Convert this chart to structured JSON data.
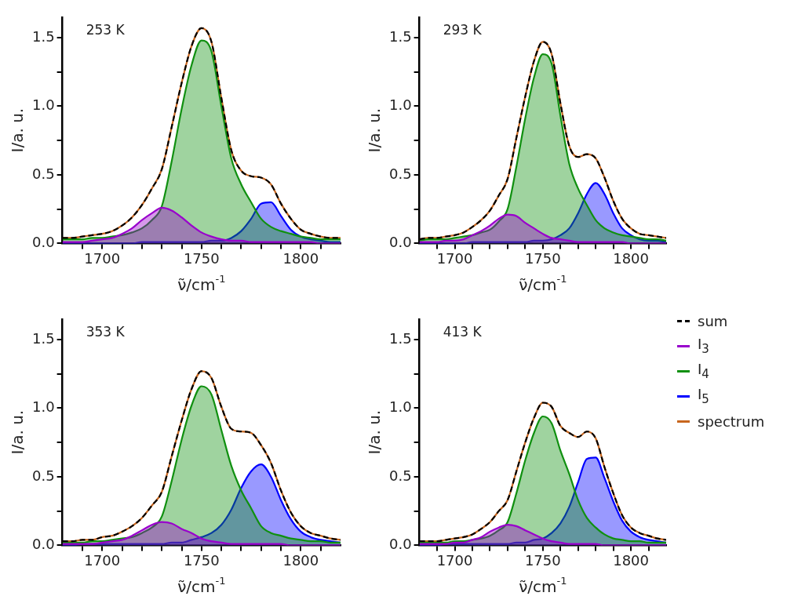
{
  "chart_data": [
    {
      "type": "line",
      "annotations": [
        "253 K"
      ],
      "xlabel": "ν̃/cm$^{-1}$",
      "ylabel": "I/a. u.",
      "marker": "none",
      "x": [
        1680,
        1685,
        1690,
        1695,
        1700,
        1705,
        1710,
        1715,
        1720,
        1725,
        1730,
        1735,
        1740,
        1745,
        1750,
        1755,
        1760,
        1765,
        1770,
        1775,
        1780,
        1785,
        1790,
        1795,
        1800,
        1805,
        1810,
        1815,
        1820
      ],
      "xlim": [
        1680,
        1820
      ],
      "xticks": [
        {
          "value": 1690,
          "label": null
        },
        {
          "value": 1700,
          "label": "1700"
        },
        {
          "value": 1710,
          "label": null
        },
        {
          "value": 1720,
          "label": null
        },
        {
          "value": 1730,
          "label": null
        },
        {
          "value": 1740,
          "label": null
        },
        {
          "value": 1750,
          "label": "1750"
        },
        {
          "value": 1760,
          "label": null
        },
        {
          "value": 1770,
          "label": null
        },
        {
          "value": 1780,
          "label": null
        },
        {
          "value": 1790,
          "label": null
        },
        {
          "value": 1800,
          "label": "1800"
        },
        {
          "value": 1810,
          "label": null
        }
      ],
      "ylim": [
        0,
        1.65
      ],
      "yticks": [
        {
          "value": 0,
          "label": "0.0"
        },
        {
          "value": 0.25,
          "label": null
        },
        {
          "value": 0.5,
          "label": "0.5"
        },
        {
          "value": 0.75,
          "label": null
        },
        {
          "value": 1,
          "label": "1.0"
        },
        {
          "value": 1.25,
          "label": null
        },
        {
          "value": 1.5,
          "label": "1.5"
        }
      ],
      "series": [
        {
          "type": "line",
          "color": "#000000",
          "line_style": "dashed",
          "values": [
            0.04,
            0.04,
            0.05,
            0.06,
            0.07,
            0.09,
            0.13,
            0.19,
            0.28,
            0.4,
            0.54,
            0.85,
            1.17,
            1.44,
            1.57,
            1.47,
            1.06,
            0.68,
            0.53,
            0.49,
            0.48,
            0.43,
            0.29,
            0.18,
            0.1,
            0.07,
            0.05,
            0.04,
            0.04
          ]
        },
        {
          "type": "area",
          "color": "#9900cc",
          "values": [
            0.01,
            0.01,
            0.01,
            0.02,
            0.03,
            0.04,
            0.07,
            0.11,
            0.17,
            0.22,
            0.26,
            0.24,
            0.19,
            0.13,
            0.08,
            0.05,
            0.03,
            0.02,
            0.02,
            0.01,
            0.01,
            0.01,
            0.01,
            0.01,
            0.01,
            0.01,
            0,
            0,
            0
          ]
        },
        {
          "type": "area",
          "color": "#109010",
          "values": [
            0.03,
            0.03,
            0.03,
            0.04,
            0.04,
            0.05,
            0.06,
            0.08,
            0.11,
            0.17,
            0.27,
            0.6,
            0.98,
            1.3,
            1.48,
            1.4,
            1.0,
            0.62,
            0.43,
            0.3,
            0.18,
            0.12,
            0.09,
            0.07,
            0.05,
            0.04,
            0.03,
            0.03,
            0.03
          ]
        },
        {
          "type": "area",
          "color": "#0000ff",
          "values": [
            0,
            0,
            0,
            0,
            0,
            0,
            0,
            0,
            0.01,
            0.01,
            0.01,
            0.01,
            0.01,
            0.01,
            0.01,
            0.02,
            0.02,
            0.04,
            0.09,
            0.18,
            0.29,
            0.3,
            0.2,
            0.1,
            0.05,
            0.03,
            0.02,
            0.01,
            0.01
          ]
        },
        {
          "type": "line",
          "color": "#c8661e",
          "values": [
            0.04,
            0.04,
            0.05,
            0.06,
            0.07,
            0.09,
            0.13,
            0.19,
            0.28,
            0.4,
            0.54,
            0.85,
            1.17,
            1.44,
            1.57,
            1.47,
            1.06,
            0.68,
            0.53,
            0.49,
            0.48,
            0.43,
            0.29,
            0.18,
            0.1,
            0.07,
            0.05,
            0.04,
            0.04
          ]
        }
      ]
    },
    {
      "type": "line",
      "annotations": [
        "293 K"
      ],
      "xlabel": "ν̃/cm$^{-1}$",
      "ylabel": "I/a. u.",
      "marker": "none",
      "x": [
        1680,
        1685,
        1690,
        1695,
        1700,
        1705,
        1710,
        1715,
        1720,
        1725,
        1730,
        1735,
        1740,
        1745,
        1750,
        1755,
        1760,
        1765,
        1770,
        1775,
        1780,
        1785,
        1790,
        1795,
        1800,
        1805,
        1810,
        1815,
        1820
      ],
      "xlim": [
        1680,
        1820
      ],
      "xticks": [
        {
          "value": 1690,
          "label": null
        },
        {
          "value": 1700,
          "label": "1700"
        },
        {
          "value": 1710,
          "label": null
        },
        {
          "value": 1720,
          "label": null
        },
        {
          "value": 1730,
          "label": null
        },
        {
          "value": 1740,
          "label": null
        },
        {
          "value": 1750,
          "label": "1750"
        },
        {
          "value": 1760,
          "label": null
        },
        {
          "value": 1770,
          "label": null
        },
        {
          "value": 1780,
          "label": null
        },
        {
          "value": 1790,
          "label": null
        },
        {
          "value": 1800,
          "label": "1800"
        },
        {
          "value": 1810,
          "label": null
        }
      ],
      "ylim": [
        0,
        1.65
      ],
      "yticks": [
        {
          "value": 0,
          "label": "0.0"
        },
        {
          "value": 0.25,
          "label": null
        },
        {
          "value": 0.5,
          "label": "0.5"
        },
        {
          "value": 0.75,
          "label": null
        },
        {
          "value": 1,
          "label": "1.0"
        },
        {
          "value": 1.25,
          "label": null
        },
        {
          "value": 1.5,
          "label": "1.5"
        }
      ],
      "series": [
        {
          "type": "line",
          "color": "#000000",
          "line_style": "dashed",
          "values": [
            0.03,
            0.04,
            0.04,
            0.05,
            0.06,
            0.08,
            0.12,
            0.17,
            0.24,
            0.35,
            0.47,
            0.77,
            1.07,
            1.33,
            1.47,
            1.38,
            1.02,
            0.71,
            0.63,
            0.65,
            0.62,
            0.48,
            0.31,
            0.18,
            0.11,
            0.07,
            0.06,
            0.05,
            0.04
          ]
        },
        {
          "type": "area",
          "color": "#9900cc",
          "values": [
            0.01,
            0.01,
            0.01,
            0.02,
            0.02,
            0.03,
            0.06,
            0.09,
            0.13,
            0.18,
            0.21,
            0.2,
            0.15,
            0.11,
            0.07,
            0.04,
            0.03,
            0.02,
            0.01,
            0.01,
            0.01,
            0.01,
            0.01,
            0.01,
            0,
            0,
            0,
            0,
            0
          ]
        },
        {
          "type": "area",
          "color": "#109010",
          "values": [
            0.02,
            0.03,
            0.03,
            0.03,
            0.04,
            0.05,
            0.06,
            0.08,
            0.1,
            0.16,
            0.25,
            0.56,
            0.91,
            1.21,
            1.38,
            1.31,
            0.93,
            0.58,
            0.4,
            0.28,
            0.17,
            0.11,
            0.08,
            0.06,
            0.05,
            0.04,
            0.03,
            0.03,
            0.02
          ]
        },
        {
          "type": "area",
          "color": "#0000ff",
          "values": [
            0,
            0,
            0,
            0,
            0,
            0,
            0.01,
            0.01,
            0.01,
            0.01,
            0.01,
            0.01,
            0.01,
            0.02,
            0.02,
            0.03,
            0.06,
            0.11,
            0.22,
            0.36,
            0.44,
            0.36,
            0.22,
            0.11,
            0.06,
            0.03,
            0.02,
            0.02,
            0.01
          ]
        },
        {
          "type": "line",
          "color": "#c8661e",
          "values": [
            0.03,
            0.04,
            0.04,
            0.05,
            0.06,
            0.08,
            0.12,
            0.17,
            0.24,
            0.35,
            0.47,
            0.77,
            1.07,
            1.33,
            1.47,
            1.38,
            1.02,
            0.71,
            0.63,
            0.65,
            0.62,
            0.48,
            0.31,
            0.18,
            0.11,
            0.07,
            0.06,
            0.05,
            0.04
          ]
        }
      ]
    },
    {
      "type": "line",
      "annotations": [
        "353 K"
      ],
      "xlabel": "ν̃/cm$^{-1}$",
      "ylabel": "I/a. u.",
      "marker": "none",
      "x": [
        1680,
        1685,
        1690,
        1695,
        1700,
        1705,
        1710,
        1715,
        1720,
        1725,
        1730,
        1735,
        1740,
        1745,
        1750,
        1755,
        1760,
        1765,
        1770,
        1775,
        1780,
        1785,
        1790,
        1795,
        1800,
        1805,
        1810,
        1815,
        1820
      ],
      "xlim": [
        1680,
        1820
      ],
      "xticks": [
        {
          "value": 1690,
          "label": null
        },
        {
          "value": 1700,
          "label": "1700"
        },
        {
          "value": 1710,
          "label": null
        },
        {
          "value": 1720,
          "label": null
        },
        {
          "value": 1730,
          "label": null
        },
        {
          "value": 1740,
          "label": null
        },
        {
          "value": 1750,
          "label": "1750"
        },
        {
          "value": 1760,
          "label": null
        },
        {
          "value": 1770,
          "label": null
        },
        {
          "value": 1780,
          "label": null
        },
        {
          "value": 1790,
          "label": null
        },
        {
          "value": 1800,
          "label": "1800"
        },
        {
          "value": 1810,
          "label": null
        }
      ],
      "ylim": [
        0,
        1.65
      ],
      "yticks": [
        {
          "value": 0,
          "label": "0.0"
        },
        {
          "value": 0.25,
          "label": null
        },
        {
          "value": 0.5,
          "label": "0.5"
        },
        {
          "value": 0.75,
          "label": null
        },
        {
          "value": 1,
          "label": "1.0"
        },
        {
          "value": 1.25,
          "label": null
        },
        {
          "value": 1.5,
          "label": "1.5"
        }
      ],
      "series": [
        {
          "type": "line",
          "color": "#000000",
          "line_style": "dashed",
          "values": [
            0.03,
            0.03,
            0.04,
            0.04,
            0.06,
            0.07,
            0.1,
            0.14,
            0.2,
            0.29,
            0.39,
            0.65,
            0.91,
            1.14,
            1.27,
            1.22,
            1.01,
            0.85,
            0.83,
            0.82,
            0.73,
            0.6,
            0.4,
            0.24,
            0.14,
            0.09,
            0.07,
            0.05,
            0.04
          ]
        },
        {
          "type": "area",
          "color": "#9900cc",
          "values": [
            0.01,
            0.01,
            0.01,
            0.01,
            0.02,
            0.03,
            0.04,
            0.07,
            0.11,
            0.15,
            0.17,
            0.16,
            0.12,
            0.09,
            0.05,
            0.03,
            0.02,
            0.01,
            0.01,
            0.01,
            0.01,
            0.01,
            0.01,
            0,
            0,
            0,
            0,
            0,
            0
          ]
        },
        {
          "type": "area",
          "color": "#109010",
          "values": [
            0.02,
            0.02,
            0.02,
            0.03,
            0.03,
            0.04,
            0.05,
            0.06,
            0.09,
            0.13,
            0.21,
            0.47,
            0.77,
            1.02,
            1.16,
            1.1,
            0.84,
            0.58,
            0.4,
            0.27,
            0.14,
            0.09,
            0.07,
            0.05,
            0.04,
            0.03,
            0.03,
            0.02,
            0.02
          ]
        },
        {
          "type": "area",
          "color": "#0000ff",
          "values": [
            0,
            0,
            0.01,
            0.01,
            0.01,
            0.01,
            0.01,
            0.01,
            0.01,
            0.01,
            0.01,
            0.02,
            0.02,
            0.04,
            0.06,
            0.09,
            0.15,
            0.26,
            0.42,
            0.54,
            0.59,
            0.5,
            0.33,
            0.19,
            0.1,
            0.06,
            0.04,
            0.03,
            0.02
          ]
        },
        {
          "type": "line",
          "color": "#c8661e",
          "values": [
            0.03,
            0.03,
            0.04,
            0.04,
            0.06,
            0.07,
            0.1,
            0.14,
            0.2,
            0.29,
            0.39,
            0.65,
            0.91,
            1.14,
            1.27,
            1.22,
            1.01,
            0.85,
            0.83,
            0.82,
            0.73,
            0.6,
            0.4,
            0.24,
            0.14,
            0.09,
            0.07,
            0.05,
            0.04
          ]
        }
      ]
    },
    {
      "type": "line",
      "annotations": [
        "413 K"
      ],
      "xlabel": "ν̃/cm$^{-1}$",
      "ylabel": "I/a. u.",
      "marker": "none",
      "legend": "right",
      "x": [
        1680,
        1685,
        1690,
        1695,
        1700,
        1705,
        1710,
        1715,
        1720,
        1725,
        1730,
        1735,
        1740,
        1745,
        1750,
        1755,
        1760,
        1765,
        1770,
        1775,
        1780,
        1785,
        1790,
        1795,
        1800,
        1805,
        1810,
        1815,
        1820
      ],
      "xlim": [
        1680,
        1820
      ],
      "xticks": [
        {
          "value": 1690,
          "label": null
        },
        {
          "value": 1700,
          "label": "1700"
        },
        {
          "value": 1710,
          "label": null
        },
        {
          "value": 1720,
          "label": null
        },
        {
          "value": 1730,
          "label": null
        },
        {
          "value": 1740,
          "label": null
        },
        {
          "value": 1750,
          "label": "1750"
        },
        {
          "value": 1760,
          "label": null
        },
        {
          "value": 1770,
          "label": null
        },
        {
          "value": 1780,
          "label": null
        },
        {
          "value": 1790,
          "label": null
        },
        {
          "value": 1800,
          "label": "1800"
        },
        {
          "value": 1810,
          "label": null
        }
      ],
      "ylim": [
        0,
        1.65
      ],
      "yticks": [
        {
          "value": 0,
          "label": "0.0"
        },
        {
          "value": 0.25,
          "label": null
        },
        {
          "value": 0.5,
          "label": "0.5"
        },
        {
          "value": 0.75,
          "label": null
        },
        {
          "value": 1,
          "label": "1.0"
        },
        {
          "value": 1.25,
          "label": null
        },
        {
          "value": 1.5,
          "label": "1.5"
        }
      ],
      "series": [
        {
          "name": "sum",
          "type": "line",
          "color": "#000000",
          "line_style": "dashed",
          "values": [
            0.03,
            0.03,
            0.03,
            0.04,
            0.05,
            0.06,
            0.08,
            0.12,
            0.17,
            0.25,
            0.33,
            0.54,
            0.75,
            0.93,
            1.04,
            1.01,
            0.87,
            0.82,
            0.79,
            0.83,
            0.78,
            0.57,
            0.38,
            0.22,
            0.13,
            0.09,
            0.07,
            0.05,
            0.04
          ]
        },
        {
          "name": "I$_{3}$",
          "type": "area",
          "color": "#9900cc",
          "values": [
            0.01,
            0.01,
            0.01,
            0.01,
            0.02,
            0.02,
            0.04,
            0.06,
            0.1,
            0.13,
            0.15,
            0.14,
            0.11,
            0.08,
            0.05,
            0.03,
            0.02,
            0.01,
            0.01,
            0.01,
            0.01,
            0,
            0,
            0,
            0,
            0,
            0,
            0,
            0
          ]
        },
        {
          "name": "I$_{4}$",
          "type": "area",
          "color": "#109010",
          "values": [
            0.02,
            0.02,
            0.02,
            0.02,
            0.03,
            0.03,
            0.04,
            0.05,
            0.07,
            0.11,
            0.17,
            0.38,
            0.62,
            0.82,
            0.94,
            0.89,
            0.69,
            0.52,
            0.33,
            0.2,
            0.13,
            0.08,
            0.05,
            0.04,
            0.03,
            0.03,
            0.02,
            0.02,
            0.02
          ]
        },
        {
          "name": "I$_{5}$",
          "type": "area",
          "color": "#0000ff",
          "values": [
            0,
            0,
            0,
            0.01,
            0.01,
            0.01,
            0.01,
            0.01,
            0.01,
            0.01,
            0.01,
            0.02,
            0.02,
            0.04,
            0.05,
            0.09,
            0.16,
            0.28,
            0.46,
            0.63,
            0.64,
            0.49,
            0.32,
            0.18,
            0.1,
            0.06,
            0.04,
            0.03,
            0.02
          ]
        },
        {
          "name": "spectrum",
          "type": "line",
          "color": "#c8661e",
          "values": [
            0.03,
            0.03,
            0.03,
            0.04,
            0.05,
            0.06,
            0.08,
            0.12,
            0.17,
            0.25,
            0.33,
            0.54,
            0.75,
            0.93,
            1.04,
            1.01,
            0.87,
            0.82,
            0.79,
            0.83,
            0.78,
            0.57,
            0.38,
            0.22,
            0.13,
            0.09,
            0.07,
            0.05,
            0.04
          ]
        }
      ]
    }
  ]
}
